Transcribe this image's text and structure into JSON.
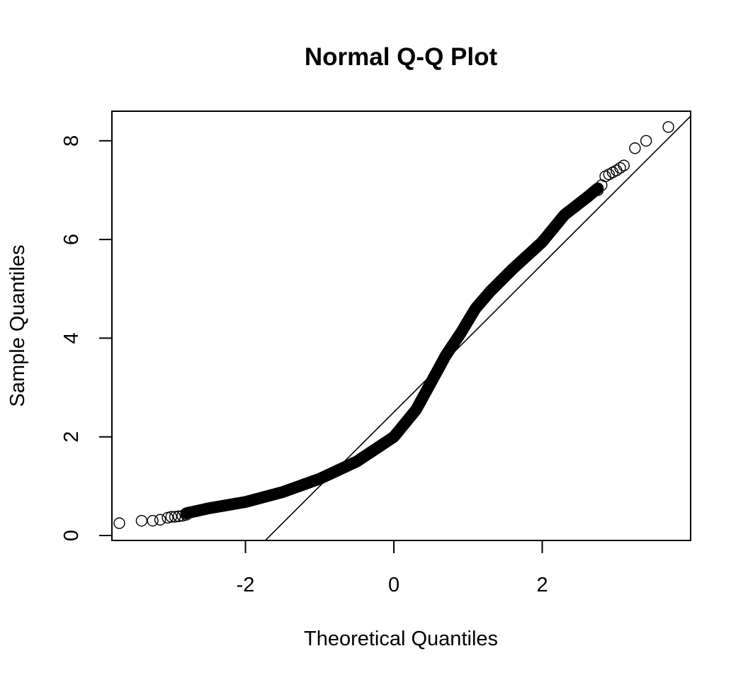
{
  "chart_data": {
    "type": "scatter",
    "title": "Normal Q-Q Plot",
    "xlabel": "Theoretical Quantiles",
    "ylabel": "Sample Quantiles",
    "xlim": [
      -3.8,
      4.0
    ],
    "ylim": [
      -0.1,
      8.6
    ],
    "x_ticks": [
      -2,
      0,
      2
    ],
    "y_ticks": [
      0,
      2,
      4,
      6,
      8
    ],
    "x_tick_labels": [
      "-2",
      "0",
      "2"
    ],
    "y_tick_labels": [
      "0",
      "2",
      "4",
      "6",
      "8"
    ],
    "grid": false,
    "legend": "none",
    "reference_line": {
      "slope": 1.5,
      "intercept": 2.5
    },
    "n_points": 1500,
    "quantile_profile": {
      "x": [
        -3.7,
        -3.4,
        -3.0,
        -2.8,
        -2.5,
        -2.0,
        -1.5,
        -1.0,
        -0.5,
        0.0,
        0.3,
        0.5,
        0.7,
        0.9,
        1.1,
        1.3,
        1.6,
        2.0,
        2.3,
        2.6,
        2.8,
        2.9,
        3.0,
        3.1,
        3.25,
        3.4,
        3.7
      ],
      "y": [
        0.25,
        0.3,
        0.38,
        0.45,
        0.55,
        0.68,
        0.88,
        1.15,
        1.5,
        2.0,
        2.55,
        3.1,
        3.65,
        4.1,
        4.6,
        4.95,
        5.4,
        5.95,
        6.5,
        6.85,
        7.1,
        7.3,
        7.4,
        7.5,
        7.85,
        8.0,
        8.28
      ]
    },
    "tail_points": {
      "x": [
        -3.7,
        -3.4,
        -3.25,
        -3.15,
        -3.05,
        -3.0,
        -2.95,
        -2.9,
        -2.85,
        -2.8,
        2.75,
        2.8,
        2.85,
        2.9,
        2.95,
        3.0,
        3.05,
        3.1,
        3.25,
        3.4,
        3.7
      ],
      "y": [
        0.25,
        0.3,
        0.3,
        0.32,
        0.36,
        0.38,
        0.38,
        0.39,
        0.4,
        0.42,
        7.0,
        7.1,
        7.28,
        7.32,
        7.36,
        7.4,
        7.45,
        7.5,
        7.85,
        8.0,
        8.28
      ]
    }
  }
}
